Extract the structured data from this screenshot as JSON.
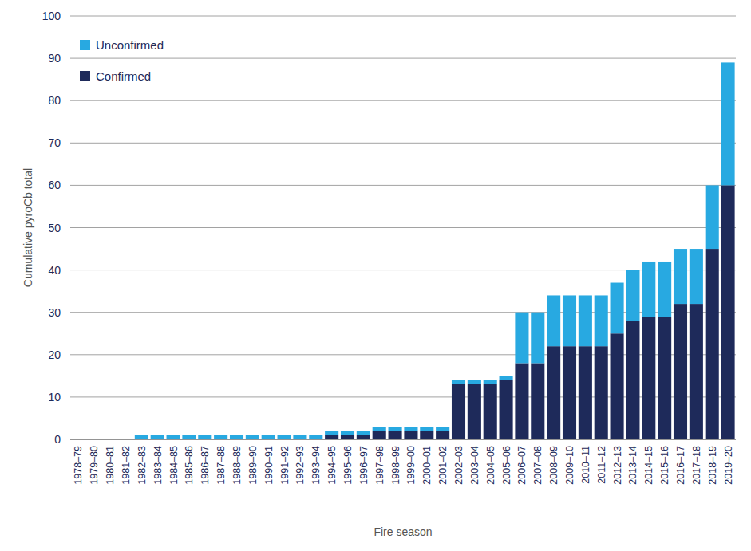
{
  "chart_data": {
    "type": "bar",
    "stacked": true,
    "grid": true,
    "legend": "top-left",
    "x_label": "Fire season",
    "y_label": "Cumulative pyroCb total",
    "categories": [
      "1978–79",
      "1979–80",
      "1980–81",
      "1981–82",
      "1982–83",
      "1983–84",
      "1984–85",
      "1985–86",
      "1986–87",
      "1987–88",
      "1988–89",
      "1989–90",
      "1990–91",
      "1991–92",
      "1992–93",
      "1993–94",
      "1994–95",
      "1995–96",
      "1996–97",
      "1997–98",
      "1998–99",
      "1999–00",
      "2000–01",
      "2001–02",
      "2002–03",
      "2003–04",
      "2004–05",
      "2005–06",
      "2006–07",
      "2007–08",
      "2008–09",
      "2009–10",
      "2010–11",
      "2011–12",
      "2012–13",
      "2013–14",
      "2014–15",
      "2015–16",
      "2016–17",
      "2017–18",
      "2018–19",
      "2019–20"
    ],
    "series": [
      {
        "name": "Confirmed",
        "color": "#1e2a5a",
        "values": [
          0,
          0,
          0,
          0,
          0,
          0,
          0,
          0,
          0,
          0,
          0,
          0,
          0,
          0,
          0,
          0,
          1,
          1,
          1,
          2,
          2,
          2,
          2,
          2,
          13,
          13,
          13,
          14,
          18,
          18,
          22,
          22,
          22,
          22,
          25,
          28,
          29,
          29,
          32,
          32,
          45,
          60
        ]
      },
      {
        "name": "Unconfirmed",
        "color": "#28a9e1",
        "values": [
          0,
          0,
          0,
          0,
          1,
          1,
          1,
          1,
          1,
          1,
          1,
          1,
          1,
          1,
          1,
          1,
          1,
          1,
          1,
          1,
          1,
          1,
          1,
          1,
          1,
          1,
          1,
          1,
          12,
          12,
          12,
          12,
          12,
          12,
          12,
          12,
          13,
          13,
          13,
          13,
          15,
          29
        ]
      }
    ],
    "ylim": [
      0,
      100
    ],
    "yticks": [
      0,
      10,
      20,
      30,
      40,
      50,
      60,
      70,
      80,
      90,
      100
    ]
  }
}
